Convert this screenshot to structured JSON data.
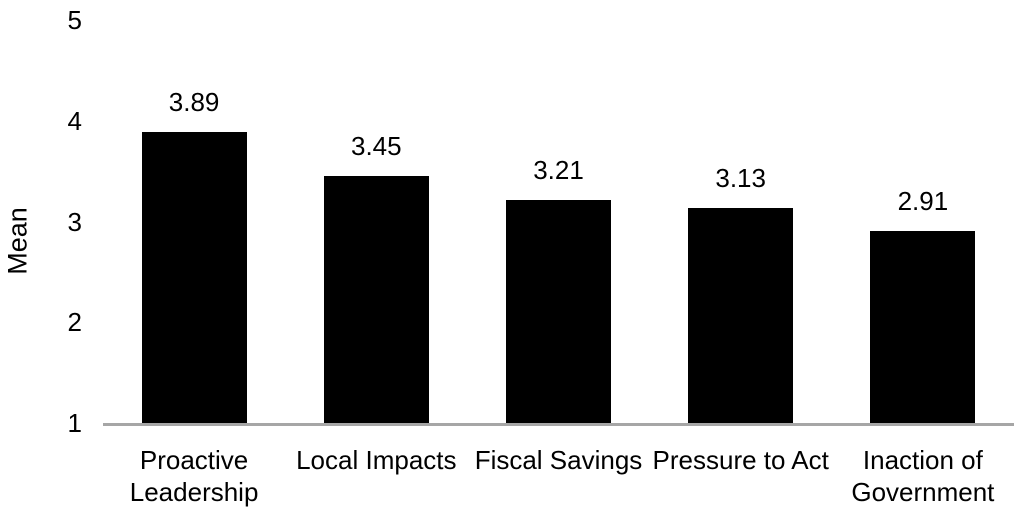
{
  "chart_data": {
    "type": "bar",
    "title": "",
    "xlabel": "",
    "ylabel": "Mean",
    "categories": [
      "Proactive Leadership",
      "Local Impacts",
      "Fiscal Savings",
      "Pressure to Act",
      "Inaction of Government"
    ],
    "values": [
      3.89,
      3.45,
      3.21,
      3.13,
      2.91
    ],
    "value_labels": [
      "3.89",
      "3.45",
      "3.21",
      "3.13",
      "2.91"
    ],
    "ylim": [
      1,
      5
    ],
    "yticks": [
      "1",
      "2",
      "3",
      "4",
      "5"
    ],
    "grid": false,
    "legend_position": "none",
    "colors": {
      "bar": "#000000",
      "axis_line": "#a6a6a6",
      "text": "#000000",
      "background": "#ffffff"
    }
  }
}
